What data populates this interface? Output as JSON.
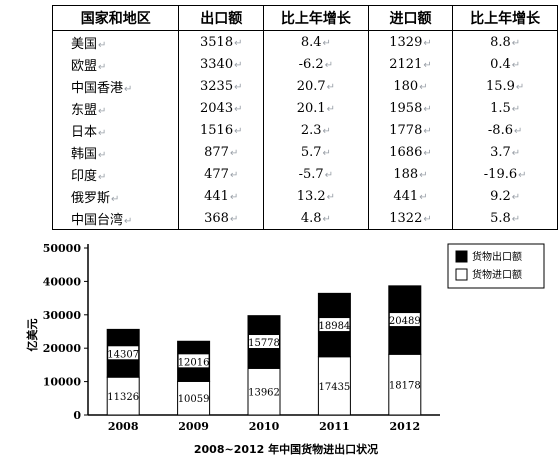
{
  "table": {
    "headers": [
      "国家和地区",
      "出口额",
      "比上年增长",
      "进口额",
      "比上年增长"
    ],
    "rows": [
      [
        "美国",
        "3518",
        "8.4",
        "1329",
        "8.8"
      ],
      [
        "欧盟",
        "3340",
        "-6.2",
        "2121",
        "0.4"
      ],
      [
        "中国香港",
        "3235",
        "20.7",
        "180",
        "15.9"
      ],
      [
        "东盟",
        "2043",
        "20.1",
        "1958",
        "1.5"
      ],
      [
        "日本",
        "1516",
        "2.3",
        "1778",
        "-8.6"
      ],
      [
        "韩国",
        "877",
        "5.7",
        "1686",
        "3.7"
      ],
      [
        "印度",
        "477",
        "-5.7",
        "188",
        "-19.6"
      ],
      [
        "俄罗斯",
        "441",
        "13.2",
        "441",
        "9.2"
      ],
      [
        "中国台湾",
        "368",
        "4.8",
        "1322",
        "5.8"
      ]
    ],
    "mark_glyph": "↵"
  },
  "chart_data": {
    "type": "bar",
    "stacked": true,
    "title": "2008~2012 年中国货物进出口状况",
    "ylabel": "亿美元",
    "xlabel": "",
    "categories": [
      "2008",
      "2009",
      "2010",
      "2011",
      "2012"
    ],
    "ylim": [
      0,
      50000
    ],
    "yticks": [
      0,
      10000,
      20000,
      30000,
      40000,
      50000
    ],
    "series": [
      {
        "name": "货物进口额",
        "values": [
          11326,
          10059,
          13962,
          17435,
          18178
        ],
        "color": "#ffffff"
      },
      {
        "name": "货物出口额",
        "values": [
          14307,
          12016,
          15778,
          18984,
          20489
        ],
        "color": "#000000"
      }
    ],
    "legend": {
      "placement": "top-right",
      "order": [
        "货物出口额",
        "货物进口额"
      ]
    },
    "grid": false
  }
}
